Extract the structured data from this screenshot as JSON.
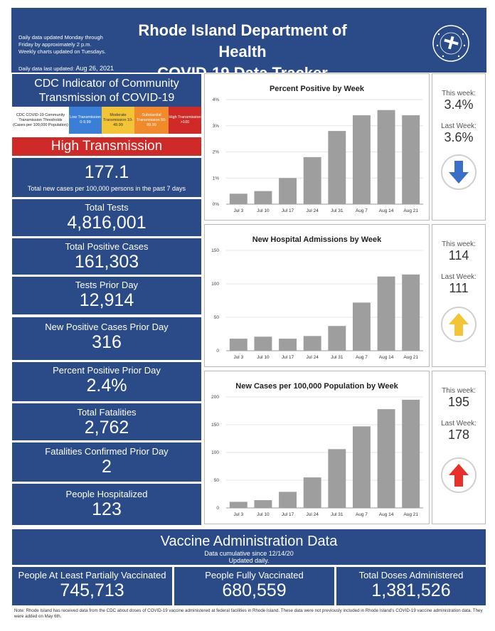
{
  "header": {
    "note_line1": "Daily data updated Monday through",
    "note_line2": "Friday by approximately 2 p.m.",
    "note_line3": "Weekly charts updated on Tuesdays.",
    "updated_label": "Daily data last updated:",
    "updated_date": "Aug 26, 2021",
    "title_line1": "Rhode Island Department of Health",
    "title_line2": "COVID-19 Data Tracker",
    "seal_text": "RHODE ISLAND DEPARTMENT OF HEALTH"
  },
  "cdc": {
    "title_line1": "CDC Indicator of Community",
    "title_line2": "Transmission of COVID-19",
    "legend": [
      {
        "text": "CDC COVID-19 Community Transmission Thresholds (Cases per 100,000 Population)",
        "color": "#ffffff"
      },
      {
        "text": "Low Transmission 0-9.99",
        "color": "#3a7fd5"
      },
      {
        "text": "Moderate Transmission 10-49.99",
        "color": "#f3c436"
      },
      {
        "text": "Substantial Transmission 50-99.99",
        "color": "#f08a2b"
      },
      {
        "text": "High Transmission >100",
        "color": "#cf2a27"
      }
    ],
    "level": "High Transmission",
    "rate": "177.1",
    "rate_caption": "Total new cases per 100,000 persons in the past 7 days"
  },
  "stats": [
    {
      "label": "Total Tests",
      "value": "4,816,001"
    },
    {
      "label": "Total Positive Cases",
      "value": "161,303"
    },
    {
      "label": "Tests Prior Day",
      "value": "12,914"
    },
    {
      "label": "New Positive Cases Prior Day",
      "value": "316"
    },
    {
      "label": "Percent Positive Prior Day",
      "value": "2.4%"
    },
    {
      "label": "Total Fatalities",
      "value": "2,762"
    },
    {
      "label": "Fatalities Confirmed Prior Day",
      "value": "2"
    },
    {
      "label": "People Hospitalized",
      "value": "123"
    }
  ],
  "weekly": [
    {
      "this_label": "This week:",
      "this_value": "3.4%",
      "last_label": "Last Week:",
      "last_value": "3.6%",
      "arrow": "arrow-down-icon",
      "arrow_color": "#3a6fc7"
    },
    {
      "this_label": "This week:",
      "this_value": "114",
      "last_label": "Last Week:",
      "last_value": "111",
      "arrow": "arrow-up-icon",
      "arrow_color": "#f3c436"
    },
    {
      "this_label": "This week:",
      "this_value": "195",
      "last_label": "Last Week:",
      "last_value": "178",
      "arrow": "arrow-up-icon",
      "arrow_color": "#e8302a"
    }
  ],
  "chart_data": [
    {
      "type": "bar",
      "title": "Percent Positive by Week",
      "categories": [
        "Jul 3",
        "Jul 10",
        "Jul 17",
        "Jul 24",
        "Jul 31",
        "Aug 7",
        "Aug 14",
        "Aug 21"
      ],
      "values": [
        0.4,
        0.5,
        1.0,
        1.8,
        2.8,
        3.4,
        3.6,
        3.4
      ],
      "yticks": [
        "0%",
        "1%",
        "2%",
        "3%",
        "4%"
      ],
      "ylim": [
        0,
        4
      ],
      "color": "#9e9e9e"
    },
    {
      "type": "bar",
      "title": "New Hospital Admissions by Week",
      "categories": [
        "Jul 3",
        "Jul 10",
        "Jul 17",
        "Jul 24",
        "Jul 31",
        "Aug 7",
        "Aug 14",
        "Aug 21"
      ],
      "values": [
        18,
        21,
        18,
        22,
        37,
        72,
        111,
        114
      ],
      "yticks": [
        "0",
        "50",
        "100",
        "150"
      ],
      "ylim": [
        0,
        150
      ],
      "color": "#9e9e9e"
    },
    {
      "type": "bar",
      "title": "New Cases per 100,000 Population by Week",
      "categories": [
        "Jul 3",
        "Jul 10",
        "Jul 17",
        "Jul 24",
        "Jul 31",
        "Aug 7",
        "Aug 14",
        "Aug 21"
      ],
      "values": [
        11,
        14,
        29,
        55,
        106,
        147,
        178,
        195
      ],
      "yticks": [
        "0",
        "50",
        "100",
        "150",
        "200"
      ],
      "ylim": [
        0,
        200
      ],
      "color": "#9e9e9e"
    }
  ],
  "vaccine": {
    "title": "Vaccine Administration Data",
    "sub1": "Data cumulative since 12/14/20",
    "sub2": "Updated daily.",
    "tiles": [
      {
        "label": "People At Least Partially Vaccinated",
        "value": "745,713"
      },
      {
        "label": "People Fully Vaccinated",
        "value": "680,559"
      },
      {
        "label": "Total Doses Administered",
        "value": "1,381,526"
      }
    ]
  },
  "footnote": "Note: Rhode Island has received data from the CDC about doses of COVID-19 vaccine administered at federal facilities in Rhode Island. These data were not previously included in Rhode Island's COVID-19 vaccine administration data. They were added on May 6th."
}
